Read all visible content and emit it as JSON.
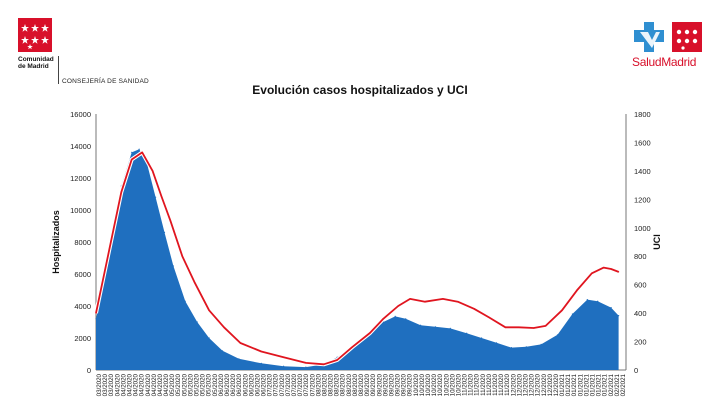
{
  "header": {
    "org_line1": "Comunidad",
    "org_line2": "de Madrid",
    "department": "CONSEJERÍA DE SANIDAD",
    "brand": "SaludMadrid",
    "flag_icon": "madrid-flag-icon",
    "health_icon": "health-cross-icon",
    "flag_color": "#d8102a",
    "health_color": "#2f8fd1"
  },
  "chart_data": {
    "type": "area",
    "title": "Evolución casos hospitalizados y UCI",
    "ylabel": "Hospitalizados",
    "y2label": "UCI",
    "ylim": [
      0,
      16000
    ],
    "y2lim": [
      0,
      1800
    ],
    "yticks": [
      "0",
      "2000",
      "4000",
      "6000",
      "8000",
      "10000",
      "12000",
      "14000",
      "16000"
    ],
    "y2ticks": [
      "0",
      "200",
      "400",
      "600",
      "800",
      "1000",
      "1200",
      "1400",
      "1600",
      "1800"
    ],
    "grid": false,
    "x_range": [
      "03/2020",
      "02/2021"
    ],
    "xticks": [
      "03/2020",
      "03/2020",
      "03/2020",
      "04/2020",
      "04/2020",
      "04/2020",
      "04/2020",
      "04/2020",
      "04/2020",
      "04/2020",
      "04/2020",
      "04/2020",
      "05/2020",
      "05/2020",
      "05/2020",
      "05/2020",
      "05/2020",
      "05/2020",
      "05/2020",
      "05/2020",
      "06/2020",
      "06/2020",
      "06/2020",
      "06/2020",
      "06/2020",
      "06/2020",
      "06/2020",
      "06/2020",
      "07/2020",
      "07/2020",
      "07/2020",
      "07/2020",
      "07/2020",
      "07/2020",
      "07/2020",
      "07/2020",
      "08/2020",
      "08/2020",
      "08/2020",
      "08/2020",
      "08/2020",
      "08/2020",
      "08/2020",
      "08/2020",
      "09/2020",
      "09/2020",
      "09/2020",
      "09/2020",
      "09/2020",
      "09/2020",
      "09/2020",
      "09/2020",
      "10/2020",
      "10/2020",
      "10/2020",
      "10/2020",
      "10/2020",
      "10/2020",
      "10/2020",
      "10/2020",
      "11/2020",
      "11/2020",
      "11/2020",
      "11/2020",
      "11/2020",
      "11/2020",
      "11/2020",
      "11/2020",
      "12/2020",
      "12/2020",
      "12/2020",
      "12/2020",
      "12/2020",
      "12/2020",
      "12/2020",
      "12/2020",
      "01/2021",
      "01/2021",
      "01/2021",
      "01/2021",
      "01/2021",
      "01/2021",
      "01/2021",
      "01/2021",
      "02/2021",
      "02/2021",
      "02/2021"
    ],
    "series": [
      {
        "name": "Hospitalizados",
        "axis": "left",
        "style": "area",
        "color": "#1f6fbf",
        "points": [
          [
            "2020-03-01",
            3200
          ],
          [
            "2020-03-10",
            7000
          ],
          [
            "2020-03-18",
            11500
          ],
          [
            "2020-03-25",
            13600
          ],
          [
            "2020-03-30",
            13800
          ],
          [
            "2020-04-04",
            13000
          ],
          [
            "2020-04-10",
            10800
          ],
          [
            "2020-04-16",
            8600
          ],
          [
            "2020-04-22",
            6500
          ],
          [
            "2020-04-30",
            4300
          ],
          [
            "2020-05-08",
            3000
          ],
          [
            "2020-05-16",
            2000
          ],
          [
            "2020-05-25",
            1200
          ],
          [
            "2020-06-05",
            700
          ],
          [
            "2020-06-20",
            420
          ],
          [
            "2020-07-05",
            240
          ],
          [
            "2020-07-20",
            180
          ],
          [
            "2020-08-01",
            350
          ],
          [
            "2020-08-10",
            800
          ],
          [
            "2020-08-20",
            1500
          ],
          [
            "2020-09-01",
            2300
          ],
          [
            "2020-09-10",
            3000
          ],
          [
            "2020-09-18",
            3350
          ],
          [
            "2020-09-25",
            3200
          ],
          [
            "2020-10-05",
            2800
          ],
          [
            "2020-10-15",
            2700
          ],
          [
            "2020-10-25",
            2600
          ],
          [
            "2020-11-05",
            2300
          ],
          [
            "2020-11-15",
            2000
          ],
          [
            "2020-11-25",
            1700
          ],
          [
            "2020-12-05",
            1400
          ],
          [
            "2020-12-15",
            1450
          ],
          [
            "2020-12-25",
            1600
          ],
          [
            "2021-01-05",
            2200
          ],
          [
            "2021-01-15",
            3500
          ],
          [
            "2021-01-25",
            4400
          ],
          [
            "2021-02-01",
            4300
          ],
          [
            "2021-02-10",
            3900
          ],
          [
            "2021-02-15",
            3400
          ]
        ]
      },
      {
        "name": "UCI",
        "axis": "right",
        "style": "line",
        "color": "#e0151f",
        "points": [
          [
            "2020-03-01",
            400
          ],
          [
            "2020-03-10",
            850
          ],
          [
            "2020-03-18",
            1250
          ],
          [
            "2020-03-25",
            1480
          ],
          [
            "2020-04-01",
            1530
          ],
          [
            "2020-04-08",
            1400
          ],
          [
            "2020-04-14",
            1220
          ],
          [
            "2020-04-20",
            1050
          ],
          [
            "2020-04-28",
            800
          ],
          [
            "2020-05-06",
            620
          ],
          [
            "2020-05-16",
            420
          ],
          [
            "2020-05-26",
            300
          ],
          [
            "2020-06-06",
            190
          ],
          [
            "2020-06-20",
            130
          ],
          [
            "2020-07-05",
            90
          ],
          [
            "2020-07-20",
            50
          ],
          [
            "2020-08-01",
            40
          ],
          [
            "2020-08-10",
            70
          ],
          [
            "2020-08-20",
            160
          ],
          [
            "2020-09-01",
            260
          ],
          [
            "2020-09-10",
            360
          ],
          [
            "2020-09-20",
            450
          ],
          [
            "2020-09-28",
            500
          ],
          [
            "2020-10-08",
            480
          ],
          [
            "2020-10-20",
            500
          ],
          [
            "2020-10-30",
            480
          ],
          [
            "2020-11-10",
            430
          ],
          [
            "2020-11-20",
            370
          ],
          [
            "2020-12-01",
            300
          ],
          [
            "2020-12-10",
            300
          ],
          [
            "2020-12-20",
            295
          ],
          [
            "2020-12-28",
            310
          ],
          [
            "2021-01-08",
            420
          ],
          [
            "2021-01-18",
            560
          ],
          [
            "2021-01-28",
            680
          ],
          [
            "2021-02-05",
            720
          ],
          [
            "2021-02-10",
            710
          ],
          [
            "2021-02-15",
            690
          ]
        ]
      }
    ]
  }
}
